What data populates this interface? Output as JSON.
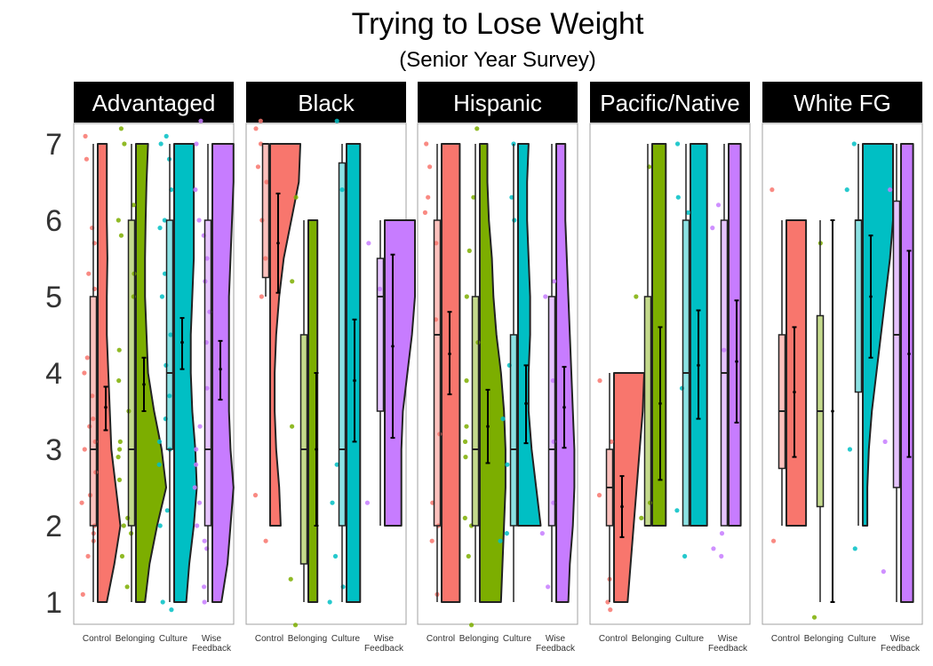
{
  "chart_data": {
    "type": "raincloud",
    "title": "Trying to Lose Weight",
    "subtitle": "(Senior Year Survey)",
    "xlabel": "",
    "ylabel": "",
    "ylim": [
      1,
      7
    ],
    "yticks": [
      1,
      2,
      3,
      4,
      5,
      6,
      7
    ],
    "categories": [
      "Control",
      "Belonging",
      "Culture",
      "Wise Feedback"
    ],
    "category_labels": [
      [
        "Control"
      ],
      [
        "Belonging"
      ],
      [
        "Culture"
      ],
      [
        "Wise",
        "Feedback"
      ]
    ],
    "colors": {
      "Control": "#F8766D",
      "Belonging": "#7CAE00",
      "Culture": "#00BFC4",
      "Wise Feedback": "#C77CFF"
    },
    "panels": [
      {
        "label": "Advantaged",
        "groups": [
          {
            "category": "Control",
            "q1": 2,
            "median": 3,
            "q3": 5,
            "whisker_low": 1,
            "whisker_high": 7,
            "mean": 3.55,
            "ci": [
              3.25,
              3.82
            ],
            "density_range": [
              1,
              7
            ],
            "density": [
              0.3,
              0.55,
              0.75,
              0.6,
              0.45,
              0.4,
              0.35,
              0.3,
              0.3,
              0.32,
              0.3,
              0.3,
              0.3
            ],
            "points": [
              1.1,
              1.6,
              1.8,
              1.9,
              2.0,
              2.3,
              2.4,
              2.7,
              3.0,
              3.1,
              3.3,
              3.4,
              3.7,
              4.0,
              4.2,
              5.1,
              5.3,
              5.7,
              5.9,
              6.8,
              7.1
            ]
          },
          {
            "category": "Belonging",
            "q1": 2,
            "median": 3,
            "q3": 6,
            "whisker_low": 1,
            "whisker_high": 7,
            "mean": 3.85,
            "ci": [
              3.5,
              4.2
            ],
            "density_range": [
              1,
              7
            ],
            "density": [
              0.3,
              0.45,
              0.7,
              1.0,
              0.85,
              0.6,
              0.4,
              0.35,
              0.3,
              0.3,
              0.32,
              0.35,
              0.4
            ],
            "points": [
              1.2,
              1.6,
              1.9,
              2.0,
              2.1,
              2.6,
              2.9,
              3.0,
              3.1,
              3.5,
              3.9,
              4.3,
              5.0,
              5.3,
              5.8,
              6.0,
              6.2,
              7.0,
              7.2
            ]
          },
          {
            "category": "Culture",
            "q1": 3,
            "median": 4,
            "q3": 6,
            "whisker_low": 1,
            "whisker_high": 7,
            "mean": 4.4,
            "ci": [
              4.05,
              4.72
            ],
            "density_range": [
              1,
              7
            ],
            "density": [
              0.4,
              0.5,
              0.65,
              0.75,
              0.7,
              0.6,
              0.55,
              0.55,
              0.6,
              0.65,
              0.65,
              0.65,
              0.65
            ],
            "points": [
              0.9,
              1.0,
              2.0,
              2.2,
              2.8,
              3.0,
              3.1,
              3.4,
              3.7,
              4.1,
              4.5,
              5.0,
              5.3,
              5.9,
              6.0,
              6.4,
              6.8,
              7.0,
              7.1
            ]
          },
          {
            "category": "Wise Feedback",
            "q1": 2,
            "median": 3,
            "q3": 6,
            "whisker_low": 1,
            "whisker_high": 7,
            "mean": 4.05,
            "ci": [
              3.65,
              4.42
            ],
            "density_range": [
              1,
              7
            ],
            "density": [
              0.3,
              0.5,
              0.6,
              0.7,
              0.6,
              0.55,
              0.55,
              0.55,
              0.55,
              0.6,
              0.65,
              0.7,
              0.7
            ],
            "points": [
              1.0,
              1.2,
              1.7,
              1.8,
              2.0,
              2.3,
              2.5,
              2.8,
              3.0,
              3.3,
              3.8,
              4.4,
              4.8,
              5.2,
              5.5,
              5.8,
              6.0,
              6.4,
              7.0,
              7.3
            ]
          }
        ]
      },
      {
        "label": "Black",
        "groups": [
          {
            "category": "Control",
            "q1": 5.25,
            "median": 7,
            "q3": 7,
            "whisker_low": 5,
            "whisker_high": 7,
            "mean": 5.7,
            "ci": [
              5.05,
              6.35
            ],
            "density_range": [
              2,
              7
            ],
            "density": [
              0.35,
              0.3,
              0.2,
              0.15,
              0.15,
              0.2,
              0.3,
              0.45,
              0.7,
              0.95,
              1.0
            ],
            "points": [
              1.8,
              2.4,
              5.0,
              5.5,
              6.0,
              6.5,
              6.7,
              7.0,
              7.2,
              7.3
            ]
          },
          {
            "category": "Belonging",
            "q1": 1.5,
            "median": 3,
            "q3": 4.5,
            "whisker_low": 1,
            "whisker_high": 6,
            "mean": 3.0,
            "ci": [
              2.0,
              4.0
            ],
            "density_range": [
              1,
              6
            ],
            "density": [
              0.3,
              0.3,
              0.3,
              0.3,
              0.3,
              0.3,
              0.3,
              0.3,
              0.3,
              0.3,
              0.3
            ],
            "points": [
              0.7,
              1.3,
              3.3,
              5.2,
              6.3
            ]
          },
          {
            "category": "Culture",
            "q1": 2,
            "median": 3,
            "q3": 6.75,
            "whisker_low": 1,
            "whisker_high": 7,
            "mean": 3.9,
            "ci": [
              3.1,
              4.7
            ],
            "density_range": [
              1,
              7
            ],
            "density": [
              0.45,
              0.45,
              0.45,
              0.45,
              0.45,
              0.45,
              0.45,
              0.45,
              0.45,
              0.45,
              0.45,
              0.45,
              0.45
            ],
            "points": [
              1.0,
              1.2,
              1.6,
              2.3,
              2.8,
              6.4,
              7.3
            ]
          },
          {
            "category": "Wise Feedback",
            "q1": 3.5,
            "median": 5,
            "q3": 5.5,
            "whisker_low": 2,
            "whisker_high": 6,
            "mean": 4.35,
            "ci": [
              3.15,
              5.55
            ],
            "density_range": [
              2,
              6
            ],
            "density": [
              0.55,
              0.55,
              0.55,
              0.6,
              0.75,
              0.9,
              1.0,
              1.0,
              1.0
            ],
            "points": [
              2.3,
              5.1,
              5.7
            ]
          }
        ]
      },
      {
        "label": "Hispanic",
        "groups": [
          {
            "category": "Control",
            "q1": 2,
            "median": 4.5,
            "q3": 6,
            "whisker_low": 1,
            "whisker_high": 7,
            "mean": 4.25,
            "ci": [
              3.72,
              4.8
            ],
            "density_range": [
              1,
              7
            ],
            "density": [
              0.6,
              0.6,
              0.6,
              0.6,
              0.6,
              0.6,
              0.6,
              0.6,
              0.6,
              0.6,
              0.6,
              0.6,
              0.6
            ],
            "points": [
              1.1,
              1.8,
              2.0,
              2.3,
              3.2,
              4.7,
              5.7,
              6.1,
              6.3,
              6.7,
              7.0
            ]
          },
          {
            "category": "Belonging",
            "q1": 2,
            "median": 3,
            "q3": 5,
            "whisker_low": 1,
            "whisker_high": 7,
            "mean": 3.3,
            "ci": [
              2.82,
              3.78
            ],
            "density_range": [
              1,
              7
            ],
            "density": [
              0.7,
              0.75,
              0.8,
              0.85,
              0.85,
              0.8,
              0.7,
              0.55,
              0.45,
              0.4,
              0.3,
              0.25,
              0.25
            ],
            "points": [
              0.7,
              1.6,
              2.0,
              2.1,
              2.9,
              3.1,
              3.3,
              3.9,
              4.4,
              5.0,
              5.6,
              6.3,
              7.2
            ]
          },
          {
            "category": "Culture",
            "q1": 2,
            "median": 3,
            "q3": 4.5,
            "whisker_low": 1,
            "whisker_high": 7,
            "mean": 3.6,
            "ci": [
              3.08,
              4.1
            ],
            "density_range": [
              2,
              7
            ],
            "density": [
              0.75,
              0.6,
              0.45,
              0.35,
              0.35,
              0.4,
              0.4,
              0.35,
              0.3,
              0.3,
              0.35
            ],
            "points": [
              1.8,
              1.9,
              2.8,
              3.4,
              4.1,
              6.0,
              6.3,
              7.0
            ]
          },
          {
            "category": "Wise Feedback",
            "q1": 2,
            "median": 3,
            "q3": 5,
            "whisker_low": 1,
            "whisker_high": 7,
            "mean": 3.55,
            "ci": [
              3.02,
              4.08
            ],
            "density_range": [
              1,
              7
            ],
            "density": [
              0.4,
              0.45,
              0.55,
              0.6,
              0.6,
              0.55,
              0.5,
              0.45,
              0.4,
              0.35,
              0.3,
              0.3,
              0.3
            ],
            "points": [
              1.2,
              1.9,
              2.3,
              3.1,
              3.9,
              5.0,
              5.2
            ]
          }
        ]
      },
      {
        "label": "Pacific/Native",
        "groups": [
          {
            "category": "Control",
            "q1": 2,
            "median": 2.5,
            "q3": 3,
            "whisker_low": 1,
            "whisker_high": 4,
            "mean": 2.25,
            "ci": [
              1.85,
              2.65
            ],
            "density_range": [
              1,
              4
            ],
            "density": [
              0.45,
              0.55,
              0.65,
              0.75,
              0.85,
              0.95,
              1.0
            ],
            "points": [
              0.9,
              1.0,
              1.3,
              2.4,
              3.1,
              3.9
            ]
          },
          {
            "category": "Belonging",
            "q1": 2,
            "median": 2,
            "q3": 5,
            "whisker_low": 2,
            "whisker_high": 7,
            "mean": 3.6,
            "ci": [
              2.6,
              4.6
            ],
            "density_range": [
              2,
              7
            ],
            "density": [
              0.45,
              0.45,
              0.45,
              0.45,
              0.45,
              0.45,
              0.45,
              0.45,
              0.45,
              0.45,
              0.45
            ],
            "points": [
              2.1,
              2.3,
              5.0,
              6.7
            ]
          },
          {
            "category": "Culture",
            "q1": 2,
            "median": 4,
            "q3": 6,
            "whisker_low": 2,
            "whisker_high": 7,
            "mean": 4.1,
            "ci": [
              3.4,
              4.82
            ],
            "density_range": [
              2,
              7
            ],
            "density": [
              0.55,
              0.55,
              0.55,
              0.55,
              0.55,
              0.55,
              0.55,
              0.55,
              0.55,
              0.55,
              0.55
            ],
            "points": [
              1.6,
              2.2,
              3.8,
              6.1,
              6.3,
              7.0
            ]
          },
          {
            "category": "Wise Feedback",
            "q1": 2,
            "median": 4,
            "q3": 6,
            "whisker_low": 2,
            "whisker_high": 7,
            "mean": 4.15,
            "ci": [
              3.35,
              4.95
            ],
            "density_range": [
              2,
              7
            ],
            "density": [
              0.4,
              0.4,
              0.4,
              0.4,
              0.4,
              0.4,
              0.4,
              0.4,
              0.4,
              0.4,
              0.4
            ],
            "points": [
              1.6,
              1.7,
              1.9,
              4.3,
              5.9,
              6.2
            ]
          }
        ]
      },
      {
        "label": "White FG",
        "groups": [
          {
            "category": "Control",
            "q1": 2.75,
            "median": 3.5,
            "q3": 4.5,
            "whisker_low": 2,
            "whisker_high": 6,
            "mean": 3.75,
            "ci": [
              2.9,
              4.6
            ],
            "density_range": [
              2,
              6
            ],
            "density": [
              0.65,
              0.65,
              0.65,
              0.65,
              0.65,
              0.65,
              0.65,
              0.65,
              0.65
            ],
            "points": [
              1.8,
              6.4
            ]
          },
          {
            "category": "Belonging",
            "q1": 2.25,
            "median": 3.5,
            "q3": 4.75,
            "whisker_low": 1,
            "whisker_high": 6,
            "mean": 3.5,
            "ci": [
              1.0,
              6.0
            ],
            "density_range": [
              1,
              6
            ],
            "density": [],
            "points": [
              0.8,
              5.7
            ]
          },
          {
            "category": "Culture",
            "q1": 3.75,
            "median": 6,
            "q3": 6,
            "whisker_low": 2,
            "whisker_high": 7,
            "mean": 5.0,
            "ci": [
              4.2,
              5.8
            ],
            "density_range": [
              2,
              7
            ],
            "density": [
              0.15,
              0.15,
              0.2,
              0.3,
              0.45,
              0.6,
              0.75,
              0.9,
              1.0,
              1.0,
              1.0
            ],
            "points": [
              1.7,
              3.0,
              6.4,
              7.0
            ]
          },
          {
            "category": "Wise Feedback",
            "q1": 2.5,
            "median": 4.5,
            "q3": 6.25,
            "whisker_low": 1,
            "whisker_high": 7,
            "mean": 4.25,
            "ci": [
              2.9,
              5.6
            ],
            "density_range": [
              1,
              7
            ],
            "density": [
              0.4,
              0.4,
              0.4,
              0.4,
              0.4,
              0.4,
              0.4,
              0.4,
              0.4,
              0.4,
              0.4,
              0.4,
              0.4
            ],
            "points": [
              1.4,
              3.1,
              6.4
            ]
          }
        ]
      }
    ]
  }
}
